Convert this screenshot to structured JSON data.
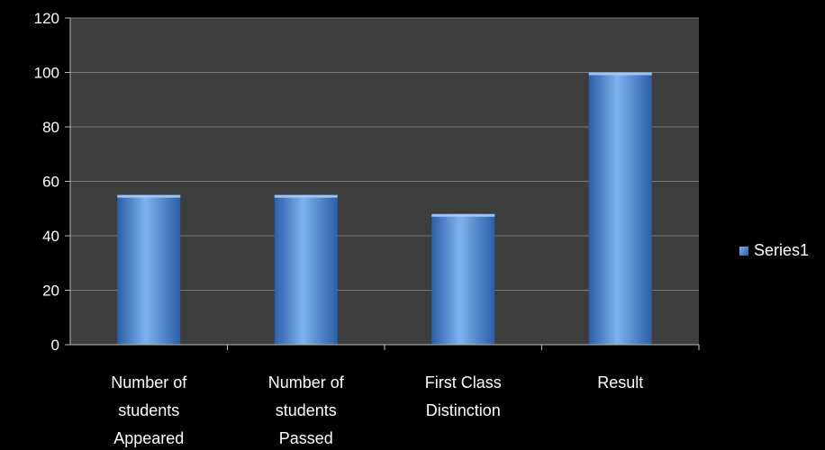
{
  "chart_data": {
    "type": "bar",
    "title": "",
    "xlabel": "",
    "ylabel": "",
    "categories": [
      [
        "Number of",
        "students",
        "Appeared"
      ],
      [
        "Number of",
        "students",
        "Passed"
      ],
      [
        "First Class",
        "Distinction"
      ],
      [
        "Result"
      ]
    ],
    "series": [
      {
        "name": "Series1",
        "values": [
          55,
          55,
          48,
          100
        ],
        "color": "#4f8fdc"
      }
    ],
    "ylim": [
      0,
      120
    ],
    "yticks": [
      0,
      20,
      40,
      60,
      80,
      100,
      120
    ],
    "grid": true,
    "legend_position": "right",
    "colors": {
      "background": "#000000",
      "plot_area": "#3d3d3d",
      "gridline": "#7a7a7a",
      "bar_light": "#7fb2ee",
      "bar_mid": "#4f8fdc",
      "bar_dark": "#2a5ea8",
      "text": "#ffffff"
    }
  }
}
